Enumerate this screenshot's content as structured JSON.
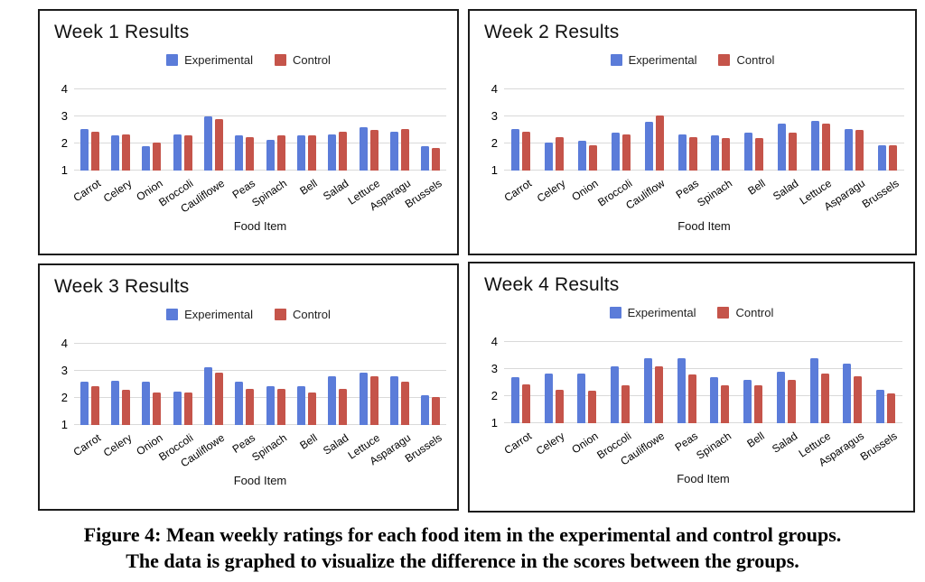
{
  "colors": {
    "experimental": "#5B7CD9",
    "control": "#C5544A"
  },
  "caption": {
    "line1": "Figure 4: Mean weekly ratings for each food item in the experimental and control groups.",
    "line2": "The data is graphed to visualize the difference in the scores between the groups."
  },
  "chart_data": [
    {
      "type": "bar",
      "title": "Week 1 Results",
      "xlabel": "Food Item",
      "ylim": [
        1,
        4
      ],
      "yticks": [
        1,
        2,
        3,
        4
      ],
      "grid": "horizontal",
      "legend_position": "top-center",
      "categories": [
        "Carrot",
        "Celery",
        "Onion",
        "Broccoli",
        "Cauliflowe",
        "Peas",
        "Spinach",
        "Bell",
        "Salad",
        "Lettuce",
        "Asparagu",
        "Brussels"
      ],
      "series": [
        {
          "name": "Experimental",
          "values": [
            2.55,
            2.3,
            1.9,
            2.35,
            3.0,
            2.3,
            2.15,
            2.3,
            2.35,
            2.6,
            2.45,
            1.9
          ]
        },
        {
          "name": "Control",
          "values": [
            2.45,
            2.35,
            2.05,
            2.3,
            2.9,
            2.25,
            2.3,
            2.3,
            2.45,
            2.5,
            2.55,
            1.85
          ]
        }
      ]
    },
    {
      "type": "bar",
      "title": "Week 2 Results",
      "xlabel": "Food Item",
      "ylim": [
        1,
        4
      ],
      "yticks": [
        1,
        2,
        3,
        4
      ],
      "grid": "horizontal",
      "legend_position": "top-center",
      "categories": [
        "Carrot",
        "Celery",
        "Onion",
        "Broccoli",
        "Cauliflow",
        "Peas",
        "Spinach",
        "Bell",
        "Salad",
        "Lettuce",
        "Asparagu",
        "Brussels"
      ],
      "series": [
        {
          "name": "Experimental",
          "values": [
            2.55,
            2.05,
            2.1,
            2.4,
            2.8,
            2.35,
            2.3,
            2.4,
            2.75,
            2.85,
            2.55,
            1.95
          ]
        },
        {
          "name": "Control",
          "values": [
            2.45,
            2.25,
            1.95,
            2.35,
            3.05,
            2.25,
            2.2,
            2.2,
            2.4,
            2.75,
            2.5,
            1.95
          ]
        }
      ]
    },
    {
      "type": "bar",
      "title": "Week 3 Results",
      "xlabel": "Food Item",
      "ylim": [
        1,
        4
      ],
      "yticks": [
        1,
        2,
        3,
        4
      ],
      "grid": "horizontal",
      "legend_position": "top-center",
      "categories": [
        "Carrot",
        "Celery",
        "Onion",
        "Broccoli",
        "Cauliflowe",
        "Peas",
        "Spinach",
        "Bell",
        "Salad",
        "Lettuce",
        "Asparagu",
        "Brussels"
      ],
      "series": [
        {
          "name": "Experimental",
          "values": [
            2.6,
            2.65,
            2.6,
            2.25,
            3.15,
            2.6,
            2.45,
            2.45,
            2.8,
            2.95,
            2.8,
            2.1
          ]
        },
        {
          "name": "Control",
          "values": [
            2.45,
            2.3,
            2.2,
            2.2,
            2.95,
            2.35,
            2.35,
            2.2,
            2.35,
            2.8,
            2.6,
            2.05
          ]
        }
      ]
    },
    {
      "type": "bar",
      "title": "Week 4 Results",
      "xlabel": "Food Item",
      "ylim": [
        1,
        4
      ],
      "yticks": [
        1,
        2,
        3,
        4
      ],
      "grid": "horizontal",
      "legend_position": "top-center",
      "categories": [
        "Carrot",
        "Celery",
        "Onion",
        "Broccoli",
        "Cauliflowe",
        "Peas",
        "Spinach",
        "Bell",
        "Salad",
        "Lettuce",
        "Asparagus",
        "Brussels"
      ],
      "series": [
        {
          "name": "Experimental",
          "values": [
            2.7,
            2.85,
            2.85,
            3.1,
            3.4,
            3.4,
            2.7,
            2.6,
            2.9,
            3.4,
            3.2,
            2.25
          ]
        },
        {
          "name": "Control",
          "values": [
            2.45,
            2.25,
            2.2,
            2.4,
            3.1,
            2.8,
            2.4,
            2.4,
            2.6,
            2.85,
            2.75,
            2.1
          ]
        }
      ]
    }
  ]
}
